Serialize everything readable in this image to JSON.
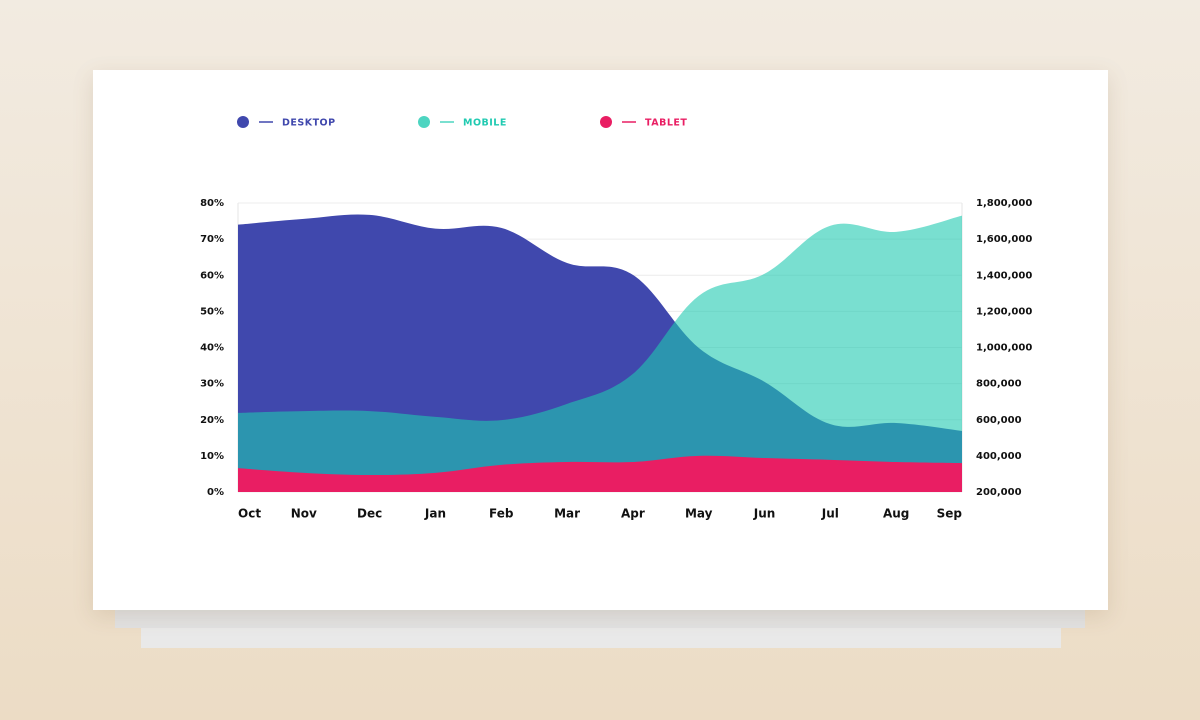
{
  "chart_data": {
    "type": "area",
    "categories": [
      "Oct",
      "Nov",
      "Dec",
      "Jan",
      "Feb",
      "Mar",
      "Apr",
      "May",
      "Jun",
      "Jul",
      "Aug",
      "Sep"
    ],
    "series": [
      {
        "name": "DESKTOP",
        "color": "#4048ad",
        "values": [
          74,
          75.6,
          76.7,
          72.9,
          73.1,
          63.4,
          60.1,
          39.9,
          30.5,
          18.8,
          19.1,
          16.9
        ]
      },
      {
        "name": "MOBILE",
        "color": "#20cab1",
        "values": [
          21.9,
          22.4,
          22.4,
          20.8,
          19.9,
          24.4,
          32.7,
          54.3,
          60.4,
          73.7,
          72,
          76.5
        ]
      },
      {
        "name": "TABLET",
        "color": "#e91e63",
        "values": [
          6.6,
          5.3,
          4.7,
          5.3,
          7.5,
          8.3,
          8.3,
          10,
          9.4,
          8.9,
          8.3,
          8.0
        ]
      }
    ],
    "ylim": [
      0,
      80
    ],
    "yticks": [
      {
        "value": 0,
        "label": "0%"
      },
      {
        "value": 10,
        "label": "10%"
      },
      {
        "value": 20,
        "label": "20%"
      },
      {
        "value": 30,
        "label": "30%"
      },
      {
        "value": 40,
        "label": "40%"
      },
      {
        "value": 50,
        "label": "50%"
      },
      {
        "value": 60,
        "label": "60%"
      },
      {
        "value": 70,
        "label": "70%"
      },
      {
        "value": 80,
        "label": "80%"
      }
    ],
    "y2lim": [
      200000,
      1800000
    ],
    "y2ticks": [
      {
        "value": 200000,
        "label": "200,000"
      },
      {
        "value": 400000,
        "label": "400,000"
      },
      {
        "value": 600000,
        "label": "600,000"
      },
      {
        "value": 800000,
        "label": "800,000"
      },
      {
        "value": 1000000,
        "label": "1,000,000"
      },
      {
        "value": 1200000,
        "label": "1,200,000"
      },
      {
        "value": 1400000,
        "label": "1,400,000"
      },
      {
        "value": 1600000,
        "label": "1,600,000"
      },
      {
        "value": 1800000,
        "label": "1,800,000"
      }
    ],
    "grid": true
  }
}
